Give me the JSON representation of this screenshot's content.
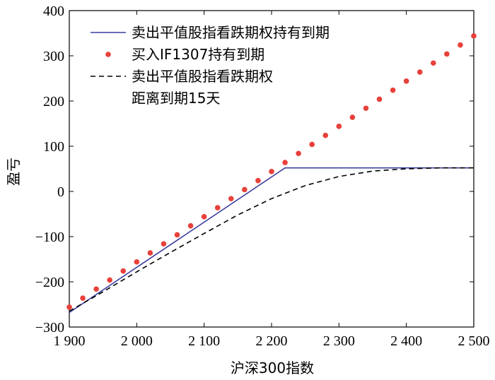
{
  "chart_data": {
    "type": "line",
    "title": "",
    "xlabel": "沪深300指数",
    "ylabel": "盈亏",
    "xlim": [
      1900,
      2500
    ],
    "ylim": [
      -300,
      400
    ],
    "x_ticks": [
      1900,
      2000,
      2100,
      2200,
      2300,
      2400,
      2500
    ],
    "x_tick_labels": [
      "1 900",
      "2 000",
      "2 100",
      "2 200",
      "2 300",
      "2 400",
      "2 500"
    ],
    "y_ticks": [
      -300,
      -200,
      -100,
      0,
      100,
      200,
      300,
      400
    ],
    "y_tick_labels": [
      "−300",
      "−200",
      "−100",
      "0",
      "100",
      "200",
      "300",
      "400"
    ],
    "legend_position": "top-left",
    "series": [
      {
        "name": "卖出平值股指看跌期权持有到期",
        "style": "solid-line",
        "color": "#3b3fa0",
        "x": [
          1900,
          2220,
          2500
        ],
        "y": [
          -268,
          52,
          52
        ]
      },
      {
        "name": "买入IF1307持有到期",
        "style": "dots",
        "color": "#e8403a",
        "x": [
          1900,
          1920,
          1940,
          1960,
          1980,
          2000,
          2020,
          2040,
          2060,
          2080,
          2100,
          2120,
          2140,
          2160,
          2180,
          2200,
          2220,
          2240,
          2260,
          2280,
          2300,
          2320,
          2340,
          2360,
          2380,
          2400,
          2420,
          2440,
          2460,
          2480,
          2500
        ],
        "y": [
          -256,
          -236,
          -216,
          -196,
          -176,
          -156,
          -136,
          -116,
          -96,
          -76,
          -56,
          -36,
          -16,
          4,
          24,
          44,
          64,
          84,
          104,
          124,
          144,
          164,
          184,
          204,
          224,
          244,
          264,
          284,
          304,
          324,
          344
        ]
      },
      {
        "name_lines": [
          "卖出平值股指看跌期权",
          "距离到期15天"
        ],
        "style": "dashed-line",
        "color": "#000000",
        "x": [
          1900,
          1950,
          2000,
          2050,
          2100,
          2150,
          2200,
          2250,
          2300,
          2350,
          2400,
          2450,
          2500
        ],
        "y": [
          -265,
          -222,
          -178,
          -135,
          -93,
          -52,
          -16,
          13,
          33,
          45,
          50,
          52,
          52
        ]
      }
    ]
  }
}
